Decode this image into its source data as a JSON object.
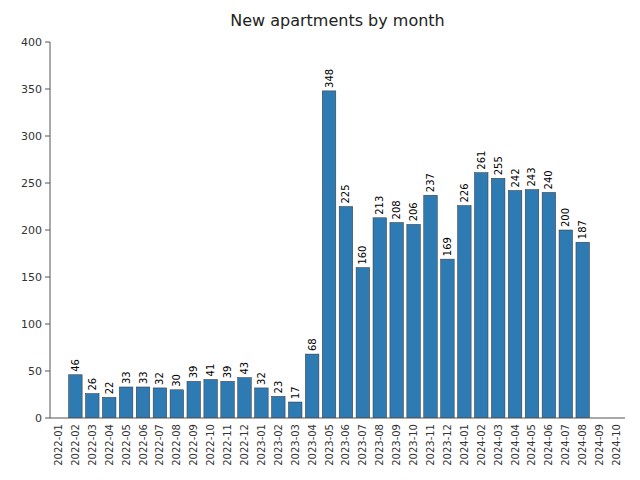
{
  "chart_data": {
    "type": "bar",
    "title": "New apartments by month",
    "categories": [
      "2022-01",
      "2022-02",
      "2022-03",
      "2022-04",
      "2022-05",
      "2022-06",
      "2022-07",
      "2022-08",
      "2022-09",
      "2022-10",
      "2022-11",
      "2022-12",
      "2023-01",
      "2023-02",
      "2023-03",
      "2023-04",
      "2023-05",
      "2023-06",
      "2023-07",
      "2023-08",
      "2023-09",
      "2023-10",
      "2023-11",
      "2023-12",
      "2024-01",
      "2024-02",
      "2024-03",
      "2024-04",
      "2024-05",
      "2024-06",
      "2024-07",
      "2024-08",
      "2024-09",
      "2024-10"
    ],
    "values": [
      0,
      46,
      26,
      22,
      33,
      33,
      32,
      30,
      39,
      41,
      39,
      43,
      32,
      23,
      17,
      68,
      348,
      225,
      160,
      213,
      208,
      206,
      237,
      169,
      226,
      261,
      255,
      242,
      243,
      240,
      200,
      187,
      0,
      0
    ],
    "color": "#2e7bb4",
    "ylim": [
      0,
      400
    ],
    "yticks": [
      0,
      50,
      100,
      150,
      200,
      250,
      300,
      350,
      400
    ],
    "grid": false,
    "data_labels": true
  }
}
